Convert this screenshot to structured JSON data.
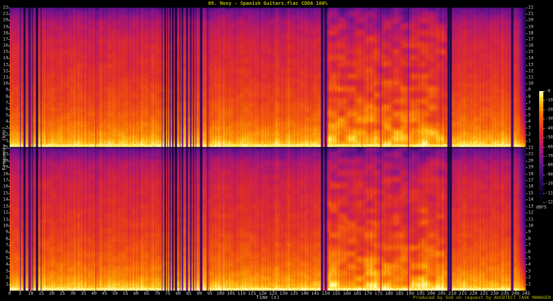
{
  "title": "09. Noxy - Spanish Guitars.flac CDDA 100%",
  "footer": "Produced by SoX on request by AUCDTECT TASK MANAGER",
  "colors": {
    "background": "#000000",
    "title_text": "#b5b900",
    "footer_text": "#b5b900",
    "axis_text": "#cfcfcf",
    "tick_mark": "#9a9a9a"
  },
  "axes": {
    "x": {
      "label": "Time (s)",
      "min": 0,
      "max": 245,
      "step": 5
    },
    "y": {
      "label": "Frequency (kHz)",
      "min": 0,
      "max": 22,
      "step": 1,
      "channels": 2
    },
    "z": {
      "label": "dBFS",
      "min": -120,
      "max": 0,
      "step": 10
    }
  },
  "chart_data": {
    "type": "heatmap",
    "title": "09. Noxy - Spanish Guitars.flac CDDA 100%",
    "xlabel": "Time (s)",
    "ylabel": "Frequency (kHz)",
    "zlabel": "dBFS",
    "x_range_s": [
      0,
      245
    ],
    "y_range_khz": [
      0,
      22
    ],
    "z_range_dbfs": [
      -120,
      0
    ],
    "channels": [
      "left",
      "right"
    ],
    "x_ticks": [
      0,
      5,
      10,
      15,
      20,
      25,
      30,
      35,
      40,
      45,
      50,
      55,
      60,
      65,
      70,
      75,
      80,
      85,
      90,
      95,
      100,
      105,
      110,
      115,
      120,
      125,
      130,
      135,
      140,
      145,
      150,
      155,
      160,
      165,
      170,
      175,
      180,
      185,
      190,
      195,
      200,
      205,
      210,
      215,
      220,
      225,
      230,
      235,
      240,
      245
    ],
    "y_ticks_khz": [
      22,
      21,
      20,
      19,
      18,
      17,
      16,
      15,
      14,
      13,
      12,
      11,
      10,
      9,
      8,
      7,
      6,
      5,
      4,
      3,
      2,
      1
    ],
    "z_ticks_dbfs": [
      "-0",
      "-10",
      "-20",
      "-30",
      "-40",
      "-50",
      "-60",
      "-70",
      "-80",
      "-90",
      "-100",
      "-110",
      "-120"
    ],
    "palette": [
      [
        0.0,
        "#000000"
      ],
      [
        0.08,
        "#0c0426"
      ],
      [
        0.18,
        "#260a56"
      ],
      [
        0.28,
        "#4a1080"
      ],
      [
        0.38,
        "#76148c"
      ],
      [
        0.47,
        "#a41678"
      ],
      [
        0.55,
        "#c81e54"
      ],
      [
        0.63,
        "#e02c2c"
      ],
      [
        0.72,
        "#f05010"
      ],
      [
        0.8,
        "#fa7804"
      ],
      [
        0.88,
        "#ffaa0a"
      ],
      [
        0.94,
        "#ffdc32"
      ],
      [
        1.0,
        "#ffffd2"
      ]
    ],
    "events": {
      "strummed_sections_s": [
        [
          5,
          15
        ],
        [
          72,
          90
        ]
      ],
      "silence_stripes_s": [
        90.6,
        148.0,
        149.6,
        208.0,
        209.0,
        238.0
      ],
      "dense_texture_section_s": [
        150,
        207
      ],
      "fade_out_s": [
        241,
        245
      ]
    }
  }
}
